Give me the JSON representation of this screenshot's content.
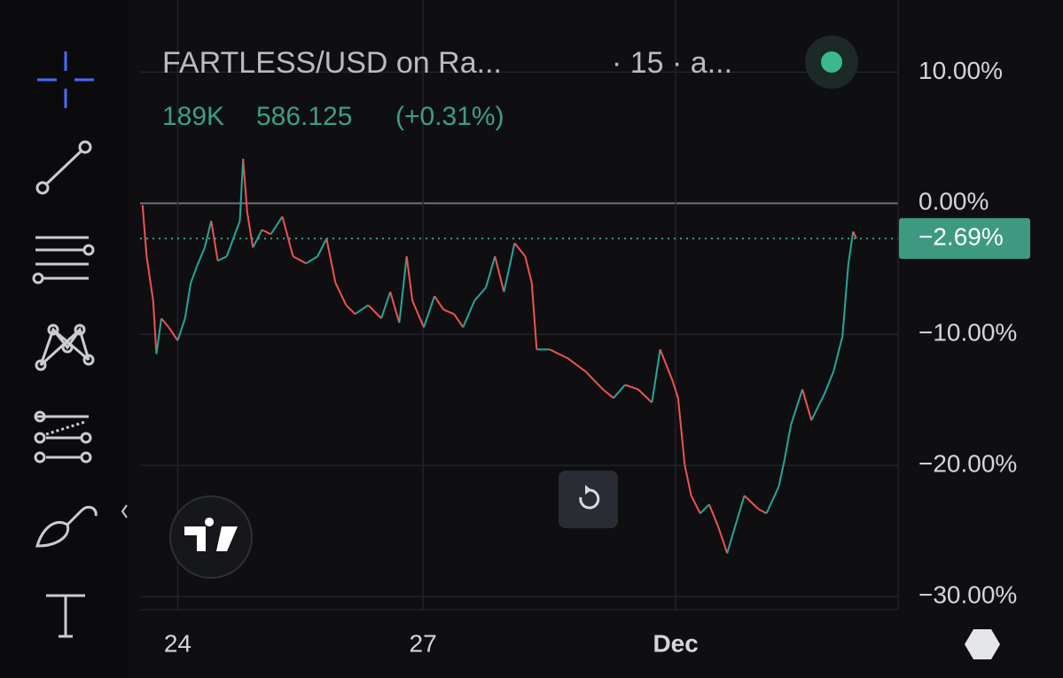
{
  "header": {
    "symbol": "FARTLESS/USD on Ra...",
    "interval": "· 15 · a...",
    "volume": "189K",
    "price": "586.125",
    "change": "(+0.31%)"
  },
  "chart_data": {
    "type": "line",
    "x": [
      23.57,
      23.62,
      23.7,
      23.74,
      23.8,
      23.89,
      24.0,
      24.09,
      24.16,
      24.24,
      24.33,
      24.41,
      24.49,
      24.6,
      24.68,
      24.76,
      24.8,
      24.85,
      24.92,
      25.03,
      25.14,
      25.28,
      25.41,
      25.57,
      25.71,
      25.82,
      25.93,
      26.06,
      26.17,
      26.33,
      26.49,
      26.6,
      26.71,
      26.8,
      26.87,
      27.01,
      27.14,
      27.25,
      27.38,
      27.49,
      27.63,
      27.77,
      27.88,
      27.99,
      28.12,
      28.25,
      28.33,
      28.39,
      28.55,
      28.77,
      28.99,
      29.2,
      29.33,
      29.47,
      29.63,
      29.8,
      29.9,
      30.05,
      30.12,
      30.2,
      30.28,
      30.39,
      30.5,
      30.61,
      30.72,
      30.8,
      30.93,
      31.1,
      31.2,
      31.35,
      31.42,
      31.5,
      31.64,
      31.75,
      31.91,
      32.02,
      32.13,
      32.2,
      32.26,
      32.3
    ],
    "series": [
      {
        "up_color": "#26a69a",
        "down_color": "#ef5350",
        "values": [
          -0.14,
          -4.05,
          -7.43,
          -11.49,
          -8.78,
          -9.46,
          -10.47,
          -8.78,
          -6.08,
          -4.73,
          -3.38,
          -1.35,
          -4.39,
          -4.05,
          -2.7,
          -1.35,
          3.38,
          -0.68,
          -3.38,
          -2.03,
          -2.36,
          -1.01,
          -4.05,
          -4.59,
          -4.05,
          -2.7,
          -6.08,
          -7.77,
          -8.45,
          -7.77,
          -8.78,
          -6.76,
          -9.12,
          -4.05,
          -7.43,
          -9.46,
          -7.09,
          -8.11,
          -8.45,
          -9.46,
          -7.43,
          -6.42,
          -4.05,
          -6.76,
          -3.04,
          -4.05,
          -6.08,
          -11.15,
          -11.15,
          -11.82,
          -12.84,
          -14.19,
          -14.86,
          -13.85,
          -14.19,
          -15.2,
          -11.15,
          -13.51,
          -14.86,
          -19.93,
          -22.3,
          -23.65,
          -22.97,
          -24.66,
          -26.69,
          -25.0,
          -22.3,
          -23.31,
          -23.65,
          -21.62,
          -19.59,
          -16.89,
          -14.19,
          -16.55,
          -14.53,
          -12.84,
          -10.14,
          -4.73,
          -2.16,
          -2.69
        ]
      }
    ],
    "xlim": [
      23.54,
      32.81
    ],
    "xticks": [
      24,
      27,
      {
        "value": 30.09,
        "label": "Dec"
      }
    ],
    "ylim": [
      -31,
      15.5
    ],
    "yticks": [
      {
        "value": 10,
        "label": "10.00%"
      },
      {
        "value": 0,
        "label": "0.00%"
      },
      {
        "value": -10,
        "label": "−10.00%"
      },
      {
        "value": -20,
        "label": "−20.00%"
      },
      {
        "value": -30,
        "label": "−30.00%"
      }
    ],
    "grid": true,
    "price_line": {
      "value": -2.69,
      "label": "−2.69%",
      "color": "#3d9a80"
    }
  }
}
